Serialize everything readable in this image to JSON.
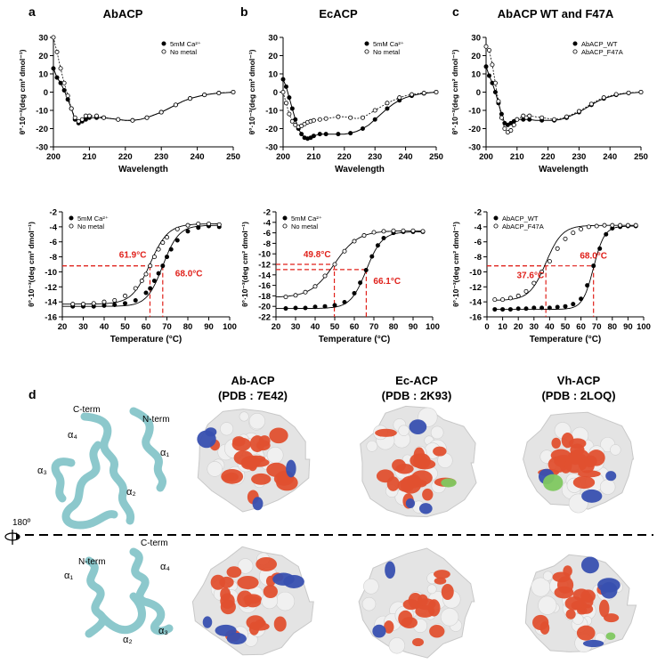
{
  "panel_letters": {
    "a": "a",
    "b": "b",
    "c": "c",
    "d": "d"
  },
  "titles": {
    "a": "AbACP",
    "b": "EcACP",
    "c": "AbACP WT and F47A"
  },
  "axis_text": {
    "cd_xlabel": "Wavelength",
    "melt_xlabel": "Temperature (°C)",
    "ylabel": "θ°·10⁻³(deg cm² dmol⁻¹)"
  },
  "structure": {
    "rotation_label": "180º",
    "ribbon_top": {
      "c_term": "C-term",
      "n_term": "N-term",
      "a4": "α₄",
      "a1": "α₁",
      "a3": "α₃",
      "a2": "α₂"
    },
    "ribbon_bottom": {
      "n_term": "N-term",
      "c_term": "C-term",
      "a1": "α₁",
      "a4": "α₄",
      "a2": "α₂",
      "a3": "α₃"
    },
    "surfaces": [
      {
        "name": "Ab-ACP",
        "pdb": "(PDB : 7E42)"
      },
      {
        "name": "Ec-ACP",
        "pdb": "(PDB : 2K93)"
      },
      {
        "name": "Vh-ACP",
        "pdb": "(PDB : 2LOQ)"
      }
    ],
    "colors": {
      "acidic": "#e0502f",
      "basic": "#3850b0",
      "polar": "#80c860",
      "neutral": "#e4e4e4",
      "ribbon": "#8cc8cc"
    }
  },
  "chart_data": [
    {
      "type": "line",
      "panel": "a-top",
      "title": "AbACP",
      "xlabel": "Wavelength",
      "ylabel": "θ°·10⁻³(deg cm² dmol⁻¹)",
      "xlim": [
        200,
        250
      ],
      "ylim": [
        -30,
        30
      ],
      "xticks": [
        200,
        210,
        220,
        230,
        240,
        250
      ],
      "yticks": [
        -30,
        -20,
        -10,
        0,
        10,
        20,
        30
      ],
      "legend": [
        "5mM Ca²⁺",
        "No metal"
      ],
      "legend_position": "top-right",
      "series": [
        {
          "name": "5mM Ca²⁺",
          "marker": "filled",
          "x": [
            200,
            201,
            202,
            203,
            204,
            205,
            206,
            207,
            208,
            209,
            210,
            212,
            214,
            216,
            218,
            220,
            222,
            224,
            226,
            228,
            230,
            232,
            234,
            236,
            238,
            240,
            242,
            244,
            246,
            248,
            250
          ],
          "y": [
            13,
            8,
            5,
            1,
            -4,
            -9,
            -15,
            -17,
            -16,
            -15,
            -14,
            -14,
            -14,
            -14.5,
            -15,
            -15.5,
            -15.5,
            -15,
            -14,
            -12.5,
            -11,
            -9,
            -7,
            -5,
            -3.5,
            -2.5,
            -1.5,
            -1,
            -0.5,
            -0.3,
            0
          ]
        },
        {
          "name": "No metal",
          "marker": "open",
          "x": [
            200,
            201,
            202,
            203,
            204,
            205,
            206,
            207,
            208,
            209,
            210,
            212,
            214,
            216,
            218,
            220,
            222,
            224,
            226,
            228,
            230,
            232,
            234,
            236,
            238,
            240,
            242,
            244,
            246,
            248,
            250
          ],
          "y": [
            30,
            22,
            13,
            5,
            -2,
            -9,
            -14,
            -16,
            -15,
            -13,
            -13,
            -13,
            -14,
            -14.5,
            -15,
            -15.5,
            -15.5,
            -15,
            -14,
            -12.5,
            -11,
            -9,
            -7,
            -5,
            -3.5,
            -2.5,
            -1.5,
            -1,
            -0.5,
            -0.3,
            0
          ]
        }
      ]
    },
    {
      "type": "line",
      "panel": "b-top",
      "title": "EcACP",
      "xlabel": "Wavelength",
      "ylabel": "θ°·10⁻³(deg cm² dmol⁻¹)",
      "xlim": [
        200,
        250
      ],
      "ylim": [
        -30,
        30
      ],
      "xticks": [
        200,
        210,
        220,
        230,
        240,
        250
      ],
      "yticks": [
        -30,
        -20,
        -10,
        0,
        10,
        20,
        30
      ],
      "legend": [
        "5mM Ca²⁺",
        "No metal"
      ],
      "legend_position": "top-right",
      "series": [
        {
          "name": "5mM Ca²⁺",
          "marker": "filled",
          "x": [
            200,
            201,
            202,
            203,
            204,
            205,
            206,
            207,
            208,
            209,
            210,
            212,
            214,
            216,
            218,
            220,
            222,
            224,
            226,
            228,
            230,
            232,
            234,
            236,
            238,
            240,
            242,
            244,
            246,
            248,
            250
          ],
          "y": [
            7,
            3,
            -3,
            -9,
            -15,
            -20,
            -23,
            -25,
            -25.5,
            -25,
            -24,
            -23,
            -23,
            -23,
            -23,
            -23,
            -22.5,
            -21.5,
            -20,
            -18,
            -15,
            -12,
            -9,
            -6.5,
            -4.5,
            -3,
            -2,
            -1.2,
            -0.7,
            -0.3,
            0
          ]
        },
        {
          "name": "No metal",
          "marker": "open",
          "x": [
            200,
            201,
            202,
            203,
            204,
            205,
            206,
            207,
            208,
            209,
            210,
            212,
            214,
            216,
            218,
            220,
            222,
            224,
            226,
            228,
            230,
            232,
            234,
            236,
            238,
            240,
            242,
            244,
            246,
            248,
            250
          ],
          "y": [
            0,
            -6,
            -12,
            -16,
            -18,
            -19,
            -18.5,
            -17.5,
            -16.5,
            -16,
            -15.5,
            -15,
            -14.5,
            -14,
            -13.5,
            -13.5,
            -14,
            -14.5,
            -14,
            -12,
            -10,
            -8,
            -6,
            -4.5,
            -3,
            -2,
            -1.3,
            -0.8,
            -0.5,
            -0.2,
            0
          ]
        }
      ]
    },
    {
      "type": "line",
      "panel": "c-top",
      "title": "AbACP WT and F47A",
      "xlabel": "Wavelength",
      "ylabel": "θ°·10⁻³(deg cm² dmol⁻¹)",
      "xlim": [
        200,
        250
      ],
      "ylim": [
        -30,
        30
      ],
      "xticks": [
        200,
        210,
        220,
        230,
        240,
        250
      ],
      "yticks": [
        -30,
        -20,
        -10,
        0,
        10,
        20,
        30
      ],
      "legend": [
        "AbACP_WT",
        "AbACP_F47A"
      ],
      "legend_position": "top-right",
      "series": [
        {
          "name": "AbACP_WT",
          "marker": "filled",
          "x": [
            200,
            201,
            202,
            203,
            204,
            205,
            206,
            207,
            208,
            209,
            210,
            212,
            214,
            216,
            218,
            220,
            222,
            224,
            226,
            228,
            230,
            232,
            234,
            236,
            238,
            240,
            242,
            244,
            246,
            248,
            250
          ],
          "y": [
            14,
            9,
            5,
            0,
            -6,
            -12,
            -17,
            -18,
            -17,
            -16,
            -15,
            -15,
            -15,
            -15.5,
            -15.5,
            -15.5,
            -15.5,
            -15,
            -14,
            -12.5,
            -11,
            -9,
            -7,
            -5,
            -3.5,
            -2.5,
            -1.5,
            -1,
            -0.5,
            -0.3,
            0
          ]
        },
        {
          "name": "AbACP_F47A",
          "marker": "open",
          "x": [
            200,
            201,
            202,
            203,
            204,
            205,
            206,
            207,
            208,
            209,
            210,
            212,
            214,
            216,
            218,
            220,
            222,
            224,
            226,
            228,
            230,
            232,
            234,
            236,
            238,
            240,
            242,
            244,
            246,
            248,
            250
          ],
          "y": [
            25,
            23,
            15,
            5,
            -5,
            -14,
            -20,
            -22,
            -21,
            -18,
            -15,
            -13,
            -13,
            -13.5,
            -14,
            -14.5,
            -15,
            -14.5,
            -13.5,
            -12,
            -10.5,
            -8.5,
            -6.5,
            -4.5,
            -3,
            -2,
            -1.2,
            -0.8,
            -0.4,
            -0.2,
            0
          ]
        }
      ]
    },
    {
      "type": "line",
      "panel": "a-bottom",
      "xlabel": "Temperature (°C)",
      "ylabel": "θ°·10⁻³(deg cm² dmol⁻¹)",
      "xlim": [
        20,
        100
      ],
      "ylim": [
        -16,
        -2
      ],
      "xticks": [
        20,
        30,
        40,
        50,
        60,
        70,
        80,
        90,
        100
      ],
      "yticks": [
        -16,
        -14,
        -12,
        -10,
        -8,
        -6,
        -4,
        -2
      ],
      "legend": [
        "5mM Ca²⁺",
        "No metal"
      ],
      "legend_position": "top-left",
      "fits": [
        {
          "name": "5mM Ca²⁺",
          "low": -14.6,
          "high": -3.8,
          "tm": 68.0,
          "w": 3.8
        },
        {
          "name": "No metal",
          "low": -14.3,
          "high": -3.6,
          "tm": 61.9,
          "w": 4.3
        }
      ],
      "series": [
        {
          "name": "5mM Ca²⁺",
          "marker": "filled",
          "x": [
            25,
            30,
            35,
            40,
            45,
            50,
            55,
            60,
            62,
            64,
            66,
            68,
            70,
            72,
            75,
            80,
            85,
            90,
            95
          ],
          "y": [
            -14.6,
            -14.6,
            -14.6,
            -14.5,
            -14.4,
            -14.2,
            -13.8,
            -12.8,
            -12.2,
            -11.2,
            -10.2,
            -9.2,
            -8.0,
            -7.0,
            -5.8,
            -4.6,
            -4.1,
            -3.9,
            -4.0
          ]
        },
        {
          "name": "No metal",
          "marker": "open",
          "x": [
            25,
            30,
            35,
            40,
            45,
            50,
            55,
            58,
            60,
            62,
            64,
            66,
            68,
            70,
            75,
            80,
            85,
            90,
            95
          ],
          "y": [
            -14.3,
            -14.3,
            -14.2,
            -14.0,
            -13.8,
            -13.2,
            -12.2,
            -11.2,
            -10.3,
            -9.2,
            -8.0,
            -7.0,
            -6.1,
            -5.4,
            -4.3,
            -3.8,
            -3.6,
            -3.6,
            -3.7
          ]
        }
      ],
      "annotations": [
        {
          "text": "61.9°C",
          "x": 61.9,
          "y": -9.2
        },
        {
          "text": "68.0°C",
          "x": 68.0,
          "y": -9.2
        }
      ]
    },
    {
      "type": "line",
      "panel": "b-bottom",
      "xlabel": "Temperature (°C)",
      "ylabel": "θ°·10⁻³(deg cm² dmol⁻¹)",
      "xlim": [
        20,
        100
      ],
      "ylim": [
        -22,
        -2
      ],
      "xticks": [
        20,
        30,
        40,
        50,
        60,
        70,
        80,
        90,
        100
      ],
      "yticks": [
        -22,
        -20,
        -18,
        -16,
        -14,
        -12,
        -10,
        -8,
        -6,
        -4,
        -2
      ],
      "legend": [
        "5mM Ca²⁺",
        "No metal"
      ],
      "legend_position": "top-left",
      "fits": [
        {
          "name": "5mM Ca²⁺",
          "low": -20.4,
          "high": -5.8,
          "tm": 66.1,
          "w": 4.0
        },
        {
          "name": "No metal",
          "low": -18.3,
          "high": -5.6,
          "tm": 49.8,
          "w": 6.0
        }
      ],
      "series": [
        {
          "name": "5mM Ca²⁺",
          "marker": "filled",
          "x": [
            25,
            30,
            35,
            40,
            45,
            50,
            55,
            60,
            63,
            66,
            69,
            72,
            75,
            80,
            85,
            90,
            95
          ],
          "y": [
            -20.4,
            -20.3,
            -20.3,
            -20.1,
            -20.0,
            -19.8,
            -19.2,
            -17.5,
            -15.5,
            -13.1,
            -10.5,
            -8.4,
            -7.0,
            -6.0,
            -5.8,
            -5.8,
            -5.8
          ]
        },
        {
          "name": "No metal",
          "marker": "open",
          "x": [
            25,
            30,
            35,
            40,
            45,
            50,
            55,
            60,
            65,
            70,
            75,
            80,
            85,
            90,
            95
          ],
          "y": [
            -18.2,
            -17.9,
            -17.3,
            -16.2,
            -14.2,
            -12.0,
            -9.5,
            -7.6,
            -6.5,
            -5.9,
            -5.7,
            -5.6,
            -5.6,
            -5.6,
            -5.7
          ]
        }
      ],
      "annotations": [
        {
          "text": "49.8°C",
          "x": 49.8,
          "y": -12.0
        },
        {
          "text": "66.1°C",
          "x": 66.1,
          "y": -13.0
        }
      ]
    },
    {
      "type": "line",
      "panel": "c-bottom",
      "xlabel": "Temperature (°C)",
      "ylabel": "θ°·10⁻³(deg cm² dmol⁻¹)",
      "xlim": [
        0,
        100
      ],
      "ylim": [
        -16,
        -2
      ],
      "xticks": [
        0,
        10,
        20,
        30,
        40,
        50,
        60,
        70,
        80,
        90,
        100
      ],
      "yticks": [
        -16,
        -14,
        -12,
        -10,
        -8,
        -6,
        -4,
        -2
      ],
      "legend": [
        "AbACP_WT",
        "AbACP_F47A"
      ],
      "legend_position": "top-left",
      "fits": [
        {
          "name": "AbACP_WT",
          "low": -15.0,
          "high": -3.9,
          "tm": 68.0,
          "w": 3.5
        },
        {
          "name": "AbACP_F47A",
          "low": -13.8,
          "high": -3.8,
          "tm": 37.6,
          "w": 5.2
        }
      ],
      "series": [
        {
          "name": "AbACP_WT",
          "marker": "filled",
          "x": [
            5,
            10,
            15,
            20,
            25,
            30,
            35,
            40,
            45,
            50,
            55,
            60,
            64,
            68,
            72,
            76,
            80,
            85,
            90,
            95
          ],
          "y": [
            -15.0,
            -15.0,
            -15.0,
            -14.9,
            -14.9,
            -14.8,
            -14.8,
            -14.8,
            -14.7,
            -14.6,
            -14.3,
            -13.6,
            -11.8,
            -9.2,
            -6.9,
            -5.0,
            -4.2,
            -4.0,
            -3.9,
            -3.9
          ]
        },
        {
          "name": "AbACP_F47A",
          "marker": "open",
          "x": [
            5,
            10,
            15,
            20,
            25,
            30,
            35,
            40,
            45,
            50,
            55,
            60,
            65,
            70,
            75,
            80,
            85,
            90,
            95
          ],
          "y": [
            -13.7,
            -13.7,
            -13.5,
            -13.2,
            -12.6,
            -11.5,
            -10.0,
            -8.6,
            -6.9,
            -5.6,
            -4.8,
            -4.3,
            -4.0,
            -3.9,
            -3.8,
            -3.8,
            -3.8,
            -3.8,
            -3.8
          ]
        }
      ],
      "annotations": [
        {
          "text": "37.6°C",
          "x": 37.6,
          "y": -9.2
        },
        {
          "text": "68.0°C",
          "x": 68.0,
          "y": -9.2
        }
      ]
    }
  ]
}
